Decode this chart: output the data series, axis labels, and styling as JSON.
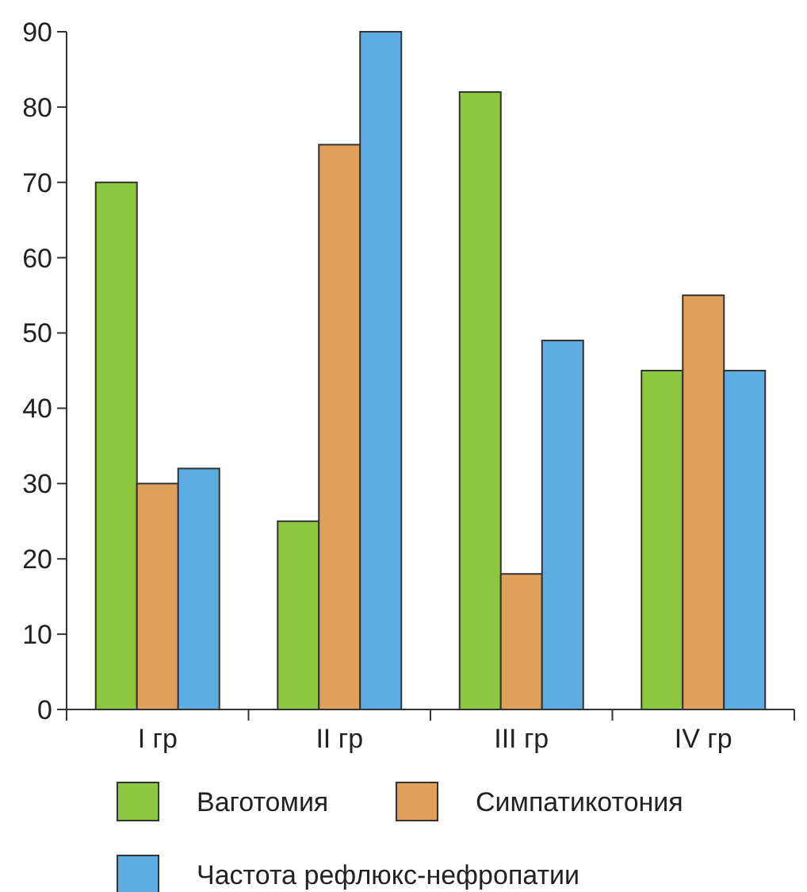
{
  "chart_data": {
    "type": "bar",
    "categories": [
      "I гр",
      "II гр",
      "III гр",
      "IV гр"
    ],
    "series": [
      {
        "name": "Ваготомия",
        "color": "#8dc63f",
        "values": [
          70,
          25,
          82,
          45
        ]
      },
      {
        "name": "Симпатикотония",
        "color": "#e0a05a",
        "values": [
          30,
          75,
          18,
          55
        ]
      },
      {
        "name": "Частота рефлюкс-нефропатии",
        "color": "#5dade2",
        "values": [
          32,
          90,
          49,
          45
        ]
      }
    ],
    "ylim": [
      0,
      90
    ],
    "yticks": [
      0,
      10,
      20,
      30,
      40,
      50,
      60,
      70,
      80,
      90
    ],
    "grid": false,
    "legend": "bottom"
  }
}
